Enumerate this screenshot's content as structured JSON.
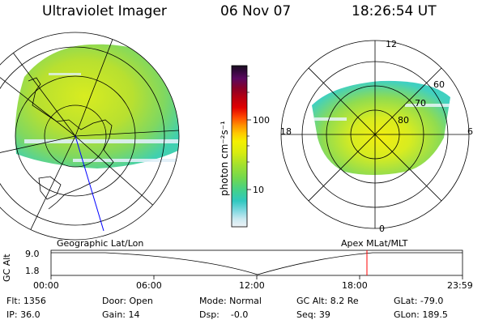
{
  "header": {
    "instrument": "Ultraviolet Imager",
    "date": "06 Nov 07",
    "time": "18:26:54 UT"
  },
  "geo_panel": {
    "label": "Geographic Lat/Lon"
  },
  "apex_panel": {
    "label": "Apex MLat/MLT",
    "mlt_labels": {
      "top": "12",
      "left": "18",
      "right": "6",
      "bottom": "0"
    },
    "lat_labels": [
      "60",
      "70",
      "80"
    ]
  },
  "colorbar": {
    "unit_label": "photon cm⁻²s⁻¹",
    "ticks": [
      "100",
      "10"
    ],
    "colors": [
      "#1a1020",
      "#300838",
      "#5a0860",
      "#880028",
      "#b80010",
      "#e00000",
      "#ff4800",
      "#ff9000",
      "#ffc800",
      "#f4f000",
      "#d8ec10",
      "#a0e030",
      "#70d850",
      "#40d090",
      "#30c8c0",
      "#80d8e0",
      "#c8e8f0",
      "#eef2f6"
    ]
  },
  "altitude_plot": {
    "ylabel": "GC Alt",
    "yticks": [
      "9.0",
      "1.8"
    ],
    "xticks": [
      "00:00",
      "06:00",
      "12:00",
      "18:00",
      "23:59"
    ],
    "orbit_minimum_time": "12:00",
    "current_marker_time": "18:26"
  },
  "info": {
    "flt": "Flt: 1356",
    "ip": "IP: 36.0",
    "door": "Door: Open",
    "gain": "Gain: 14",
    "mode": "Mode: Normal",
    "dsp": "Dsp:    -0.0",
    "gcalt": "GC Alt: 8.2 Re",
    "seq": "Seq: 39",
    "glat": "GLat: -79.0",
    "glon": "GLon: 189.5"
  },
  "colors": {
    "foreground": "#000000",
    "marker": "#ff0000",
    "track": "#0000ff"
  }
}
